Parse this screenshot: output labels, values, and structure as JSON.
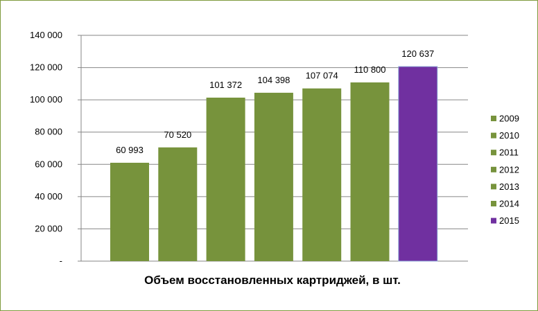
{
  "chart_data": {
    "type": "bar",
    "categories": [
      "2009",
      "2010",
      "2011",
      "2012",
      "2013",
      "2014",
      "2015"
    ],
    "values": [
      60993,
      70520,
      101372,
      104398,
      107074,
      110800,
      120637
    ],
    "data_labels": [
      "60 993",
      "70 520",
      "101 372",
      "104 398",
      "107 074",
      "110 800",
      "120 637"
    ],
    "colors": [
      "#77933c",
      "#77933c",
      "#77933c",
      "#76923c",
      "#77933c",
      "#77933c",
      "#7030a0"
    ],
    "title": "",
    "xlabel": "Объем восстановленных  картриджей,  в шт.",
    "ylabel": "",
    "ylim": [
      0,
      140000
    ],
    "yticks": [
      0,
      20000,
      40000,
      60000,
      80000,
      100000,
      120000,
      140000
    ],
    "ytick_labels": [
      "-",
      "20 000",
      "40 000",
      "60 000",
      "80 000",
      "100 000",
      "120 000",
      "140 000"
    ],
    "grid": true,
    "legend": {
      "position": "right",
      "entries": [
        "2009",
        "2010",
        "2011",
        "2012",
        "2013",
        "2014",
        "2015"
      ]
    }
  }
}
